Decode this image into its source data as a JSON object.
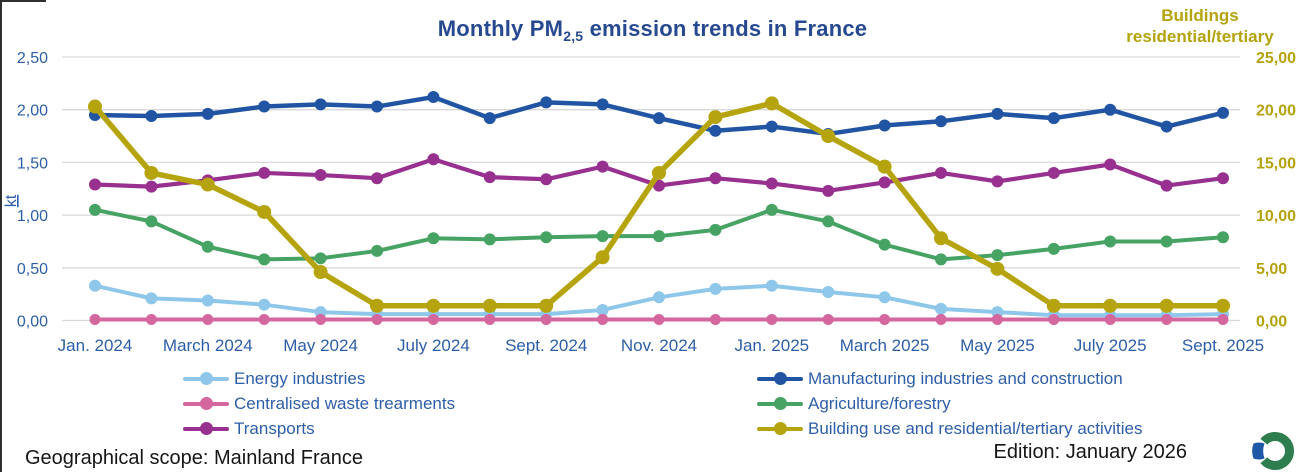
{
  "frame": {
    "footer_left": "Geographical scope: Mainland France",
    "footer_right": "Edition: January 2026"
  },
  "colors": {
    "title_text": "#27498f",
    "left_axis_text": "#2e5ea8",
    "right_axis_text": "#b3a30d",
    "legend_text": "#2e5ea8",
    "gridline": "#d9d9d9",
    "footer_text": "#161616",
    "edge_line": "#2f2f2f",
    "logo_green": "#2e7d4e",
    "logo_blue": "#2058a8"
  },
  "chart_data": {
    "type": "line",
    "title": "Monthly PM2,5 emission trends in France",
    "title_pre": "Monthly PM",
    "title_sub": "2,5",
    "title_post": " emission trends in France",
    "x_tick_labels": [
      "Jan. 2024",
      "March 2024",
      "May 2024",
      "July 2024",
      "Sept. 2024",
      "Nov. 2024",
      "Jan. 2025",
      "March 2025",
      "May 2025",
      "July 2025",
      "Sept. 2025"
    ],
    "x_tick_every": 2,
    "points_per_series": 21,
    "left_axis": {
      "label": "kt",
      "ticks": [
        "0,00",
        "0,50",
        "1,00",
        "1,50",
        "2,00",
        "2,50"
      ],
      "min": 0,
      "max": 2.5
    },
    "right_axis": {
      "title": [
        "Buildings",
        "residential/tertiary"
      ],
      "ticks": [
        "0,00",
        "5,00",
        "10,00",
        "15,00",
        "20,00",
        "25,00"
      ],
      "min": 0,
      "max": 25
    },
    "grid": "horizontal",
    "legend_position": "bottom",
    "series": [
      {
        "name": "Energy industries",
        "color": "#8ec7ea",
        "axis": "left",
        "values": [
          0.33,
          0.21,
          0.19,
          0.15,
          0.08,
          0.06,
          0.06,
          0.06,
          0.06,
          0.1,
          0.22,
          0.3,
          0.33,
          0.27,
          0.22,
          0.11,
          0.08,
          0.05,
          0.05,
          0.05,
          0.06
        ]
      },
      {
        "name": "Manufacturing industries and construction",
        "color": "#2155a3",
        "axis": "left",
        "values": [
          1.95,
          1.94,
          1.96,
          2.03,
          2.05,
          2.03,
          2.12,
          1.92,
          2.07,
          2.05,
          1.92,
          1.8,
          1.84,
          1.77,
          1.85,
          1.89,
          1.96,
          1.92,
          2.0,
          1.84,
          1.97
        ]
      },
      {
        "name": "Centralised waste trearments",
        "color": "#d5679f",
        "axis": "left",
        "values": [
          0.01,
          0.01,
          0.01,
          0.01,
          0.01,
          0.01,
          0.01,
          0.01,
          0.01,
          0.01,
          0.01,
          0.01,
          0.01,
          0.01,
          0.01,
          0.01,
          0.01,
          0.01,
          0.01,
          0.01,
          0.01
        ]
      },
      {
        "name": "Agriculture/forestry",
        "color": "#46a364",
        "axis": "left",
        "values": [
          1.05,
          0.94,
          0.7,
          0.58,
          0.59,
          0.66,
          0.78,
          0.77,
          0.79,
          0.8,
          0.8,
          0.86,
          1.05,
          0.94,
          0.72,
          0.58,
          0.62,
          0.68,
          0.75,
          0.75,
          0.79
        ]
      },
      {
        "name": "Transports",
        "color": "#97308f",
        "axis": "left",
        "values": [
          1.29,
          1.27,
          1.33,
          1.4,
          1.38,
          1.35,
          1.53,
          1.36,
          1.34,
          1.46,
          1.28,
          1.35,
          1.3,
          1.23,
          1.31,
          1.4,
          1.32,
          1.4,
          1.48,
          1.28,
          1.35
        ]
      },
      {
        "name": "Building use and residential/tertiary activities",
        "color": "#b5a40e",
        "axis": "right",
        "values": [
          20.3,
          14.0,
          12.9,
          10.3,
          4.6,
          1.4,
          1.4,
          1.4,
          1.4,
          6.0,
          14.0,
          19.3,
          20.6,
          17.5,
          14.6,
          7.8,
          4.9,
          1.4,
          1.4,
          1.4,
          1.4
        ]
      }
    ],
    "legend_columns": [
      [
        0,
        2,
        4
      ],
      [
        1,
        3,
        5
      ]
    ]
  }
}
